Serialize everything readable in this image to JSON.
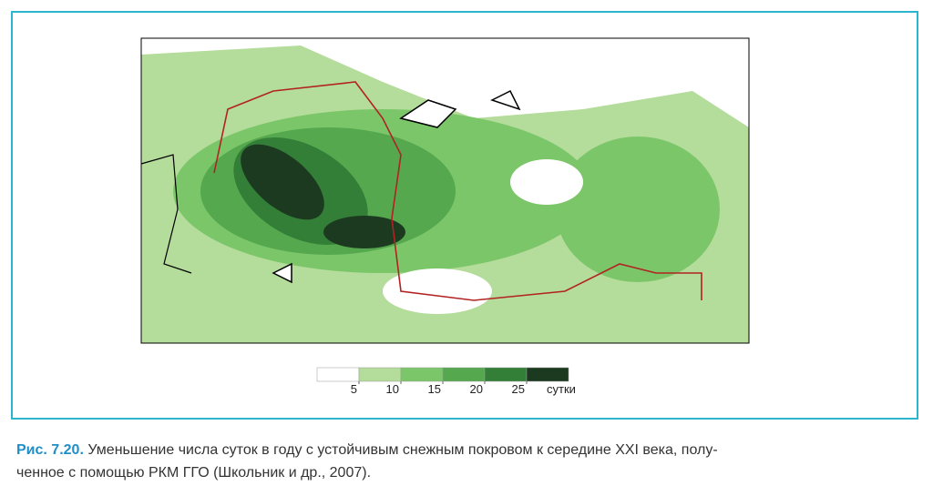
{
  "figure": {
    "legend": {
      "ticks": [
        5,
        10,
        15,
        20,
        25
      ],
      "unit": "сутки",
      "colors": [
        "#ffffff",
        "#b4dc9a",
        "#7cc66a",
        "#55a84e",
        "#347f38",
        "#1c3a20"
      ]
    }
  },
  "caption": {
    "label": "Рис. 7.20.",
    "lines": [
      "Уменьшение числа суток в году с устойчивым снежным покровом к середине XXI века, полу-",
      "ченное с помощью РКМ ГГО (Школьник и др., 2007)."
    ]
  }
}
